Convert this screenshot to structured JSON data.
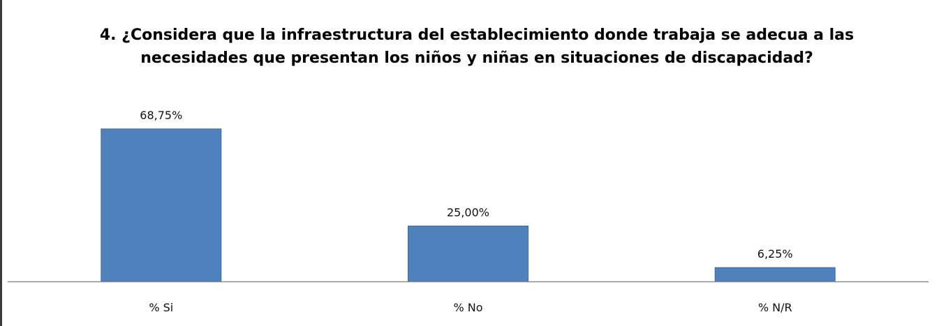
{
  "chart_data": {
    "type": "bar",
    "title": "4.  ¿Considera que la infraestructura del establecimiento donde trabaja se adecua a las necesidades que presentan los niños y niñas en situaciones de discapacidad?",
    "categories": [
      "% Si",
      "% No",
      "% N/R"
    ],
    "values": [
      68.75,
      25.0,
      6.25
    ],
    "data_labels": [
      "68,75%",
      "25,00%",
      "6,25%"
    ],
    "xlabel": "",
    "ylabel": "",
    "ylim": [
      0,
      68.75
    ],
    "grid": false,
    "legend": "none",
    "colors": {
      "bar": "#4f81bd",
      "bar_edge": "#416a9e",
      "axis": "#8c8c8c"
    }
  }
}
